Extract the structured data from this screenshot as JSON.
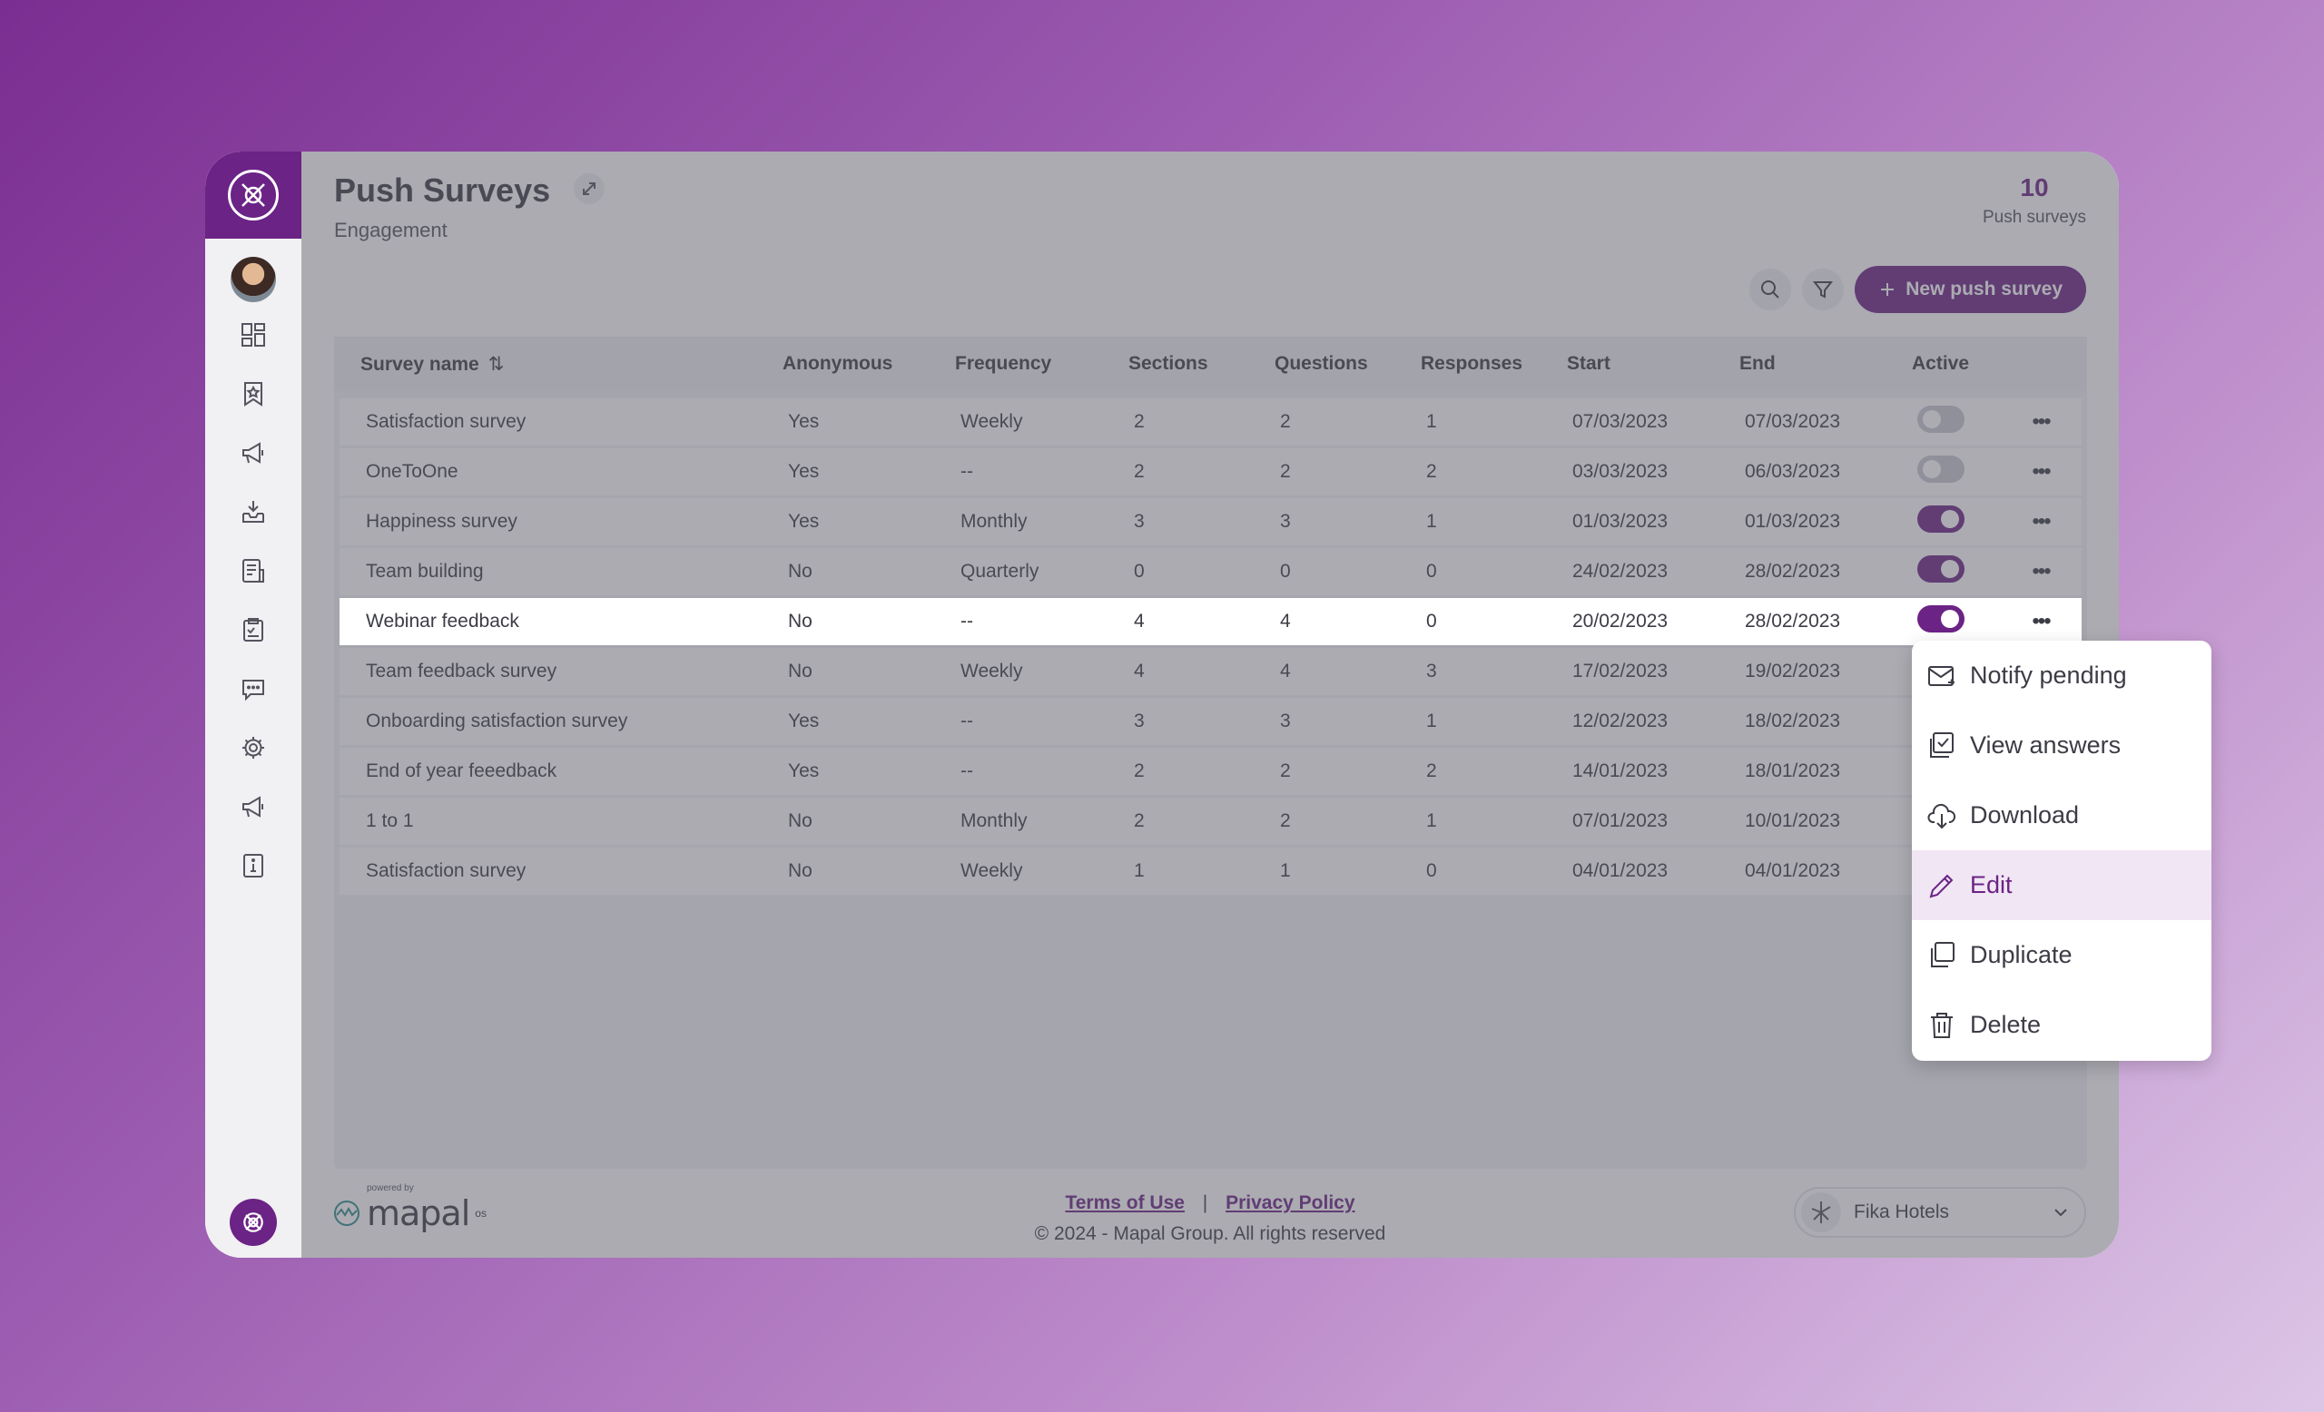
{
  "header": {
    "title": "Push Surveys",
    "subtitle": "Engagement",
    "count": "10",
    "count_label": "Push surveys",
    "new_button": "New push survey"
  },
  "table": {
    "columns": [
      "Survey name",
      "Anonymous",
      "Frequency",
      "Sections",
      "Questions",
      "Responses",
      "Start",
      "End",
      "Active"
    ],
    "rows": [
      {
        "name": "Satisfaction survey",
        "anonymous": "Yes",
        "frequency": "Weekly",
        "sections": "2",
        "questions": "2",
        "responses": "1",
        "start": "07/03/2023",
        "end": "07/03/2023",
        "active": false
      },
      {
        "name": "OneToOne",
        "anonymous": "Yes",
        "frequency": "--",
        "sections": "2",
        "questions": "2",
        "responses": "2",
        "start": "03/03/2023",
        "end": "06/03/2023",
        "active": false
      },
      {
        "name": "Happiness survey",
        "anonymous": "Yes",
        "frequency": "Monthly",
        "sections": "3",
        "questions": "3",
        "responses": "1",
        "start": "01/03/2023",
        "end": "01/03/2023",
        "active": true
      },
      {
        "name": "Team building",
        "anonymous": "No",
        "frequency": "Quarterly",
        "sections": "0",
        "questions": "0",
        "responses": "0",
        "start": "24/02/2023",
        "end": "28/02/2023",
        "active": true
      },
      {
        "name": "Webinar feedback",
        "anonymous": "No",
        "frequency": "--",
        "sections": "4",
        "questions": "4",
        "responses": "0",
        "start": "20/02/2023",
        "end": "28/02/2023",
        "active": true,
        "selected": true
      },
      {
        "name": "Team feedback survey",
        "anonymous": "No",
        "frequency": "Weekly",
        "sections": "4",
        "questions": "4",
        "responses": "3",
        "start": "17/02/2023",
        "end": "19/02/2023",
        "active": null
      },
      {
        "name": "Onboarding satisfaction survey",
        "anonymous": "Yes",
        "frequency": "--",
        "sections": "3",
        "questions": "3",
        "responses": "1",
        "start": "12/02/2023",
        "end": "18/02/2023",
        "active": null
      },
      {
        "name": "End of year feeedback",
        "anonymous": "Yes",
        "frequency": "--",
        "sections": "2",
        "questions": "2",
        "responses": "2",
        "start": "14/01/2023",
        "end": "18/01/2023",
        "active": null
      },
      {
        "name": "1 to 1",
        "anonymous": "No",
        "frequency": "Monthly",
        "sections": "2",
        "questions": "2",
        "responses": "1",
        "start": "07/01/2023",
        "end": "10/01/2023",
        "active": null
      },
      {
        "name": "Satisfaction survey",
        "anonymous": "No",
        "frequency": "Weekly",
        "sections": "1",
        "questions": "1",
        "responses": "0",
        "start": "04/01/2023",
        "end": "04/01/2023",
        "active": null
      }
    ]
  },
  "context_menu": {
    "items": [
      {
        "label": "Notify pending",
        "icon": "mail-icon"
      },
      {
        "label": "View answers",
        "icon": "view-answers-icon"
      },
      {
        "label": "Download",
        "icon": "download-icon"
      },
      {
        "label": "Edit",
        "icon": "edit-icon",
        "active": true
      },
      {
        "label": "Duplicate",
        "icon": "duplicate-icon"
      },
      {
        "label": "Delete",
        "icon": "trash-icon"
      }
    ]
  },
  "footer": {
    "powered_by": "powered by",
    "brand": "mapal",
    "brand_suffix": "os",
    "terms": "Terms of Use",
    "separator": "|",
    "privacy": "Privacy Policy",
    "copyright": "© 2024 - Mapal Group. All rights reserved",
    "org": "Fika Hotels"
  },
  "colors": {
    "accent": "#6b2385",
    "overlay": "rgba(88,88,100,0.5)"
  }
}
